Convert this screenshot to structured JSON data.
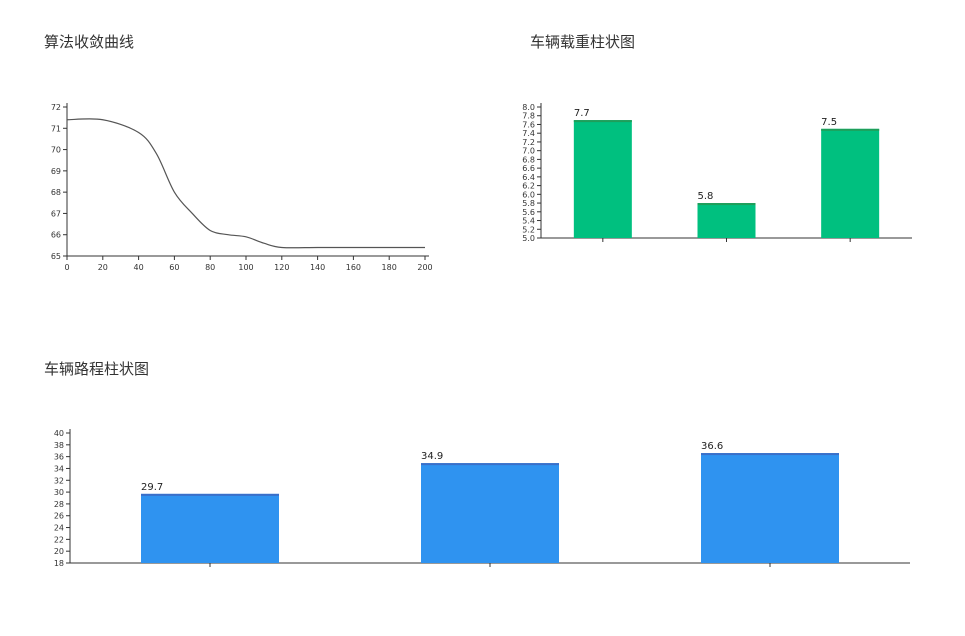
{
  "chart_data": [
    {
      "id": "convergence",
      "type": "line",
      "title": "算法收敛曲线",
      "ylabel": "",
      "xlabel": "",
      "x": [
        0,
        20,
        40,
        50,
        60,
        70,
        80,
        90,
        100,
        110,
        120,
        140,
        160,
        180,
        200
      ],
      "values": [
        71.4,
        71.4,
        70.8,
        69.8,
        68.0,
        67.0,
        66.2,
        66.0,
        65.9,
        65.6,
        65.4,
        65.4,
        65.4,
        65.4,
        65.4
      ],
      "xlim": [
        0,
        200
      ],
      "ylim": [
        65,
        72
      ],
      "xticks": [
        0,
        20,
        40,
        60,
        80,
        100,
        120,
        140,
        160,
        180,
        200
      ],
      "yticks": [
        65,
        66,
        67,
        68,
        69,
        70,
        71,
        72
      ],
      "color": "#555555"
    },
    {
      "id": "load",
      "type": "bar",
      "title": "车辆载重柱状图",
      "ylabel": "",
      "xlabel": "",
      "categories": [
        "",
        "",
        ""
      ],
      "values": [
        7.7,
        5.8,
        7.5
      ],
      "value_labels": [
        "7.7",
        "5.8",
        "7.5"
      ],
      "ylim": [
        5.0,
        8.0
      ],
      "yticks": [
        5.0,
        5.2,
        5.4,
        5.6,
        5.8,
        6.0,
        6.2,
        6.4,
        6.6,
        6.8,
        7.0,
        7.2,
        7.4,
        7.6,
        7.8,
        8.0
      ],
      "color": "#00c07f",
      "top_color": "#1f9e5a"
    },
    {
      "id": "distance",
      "type": "bar",
      "title": "车辆路程柱状图",
      "ylabel": "",
      "xlabel": "",
      "categories": [
        "",
        "",
        ""
      ],
      "values": [
        29.7,
        34.9,
        36.6
      ],
      "value_labels": [
        "29.7",
        "34.9",
        "36.6"
      ],
      "ylim": [
        18,
        40
      ],
      "yticks": [
        18,
        20,
        22,
        24,
        26,
        28,
        30,
        32,
        34,
        36,
        38,
        40
      ],
      "color": "#2f93f0",
      "top_color": "#3a6fc9"
    }
  ]
}
